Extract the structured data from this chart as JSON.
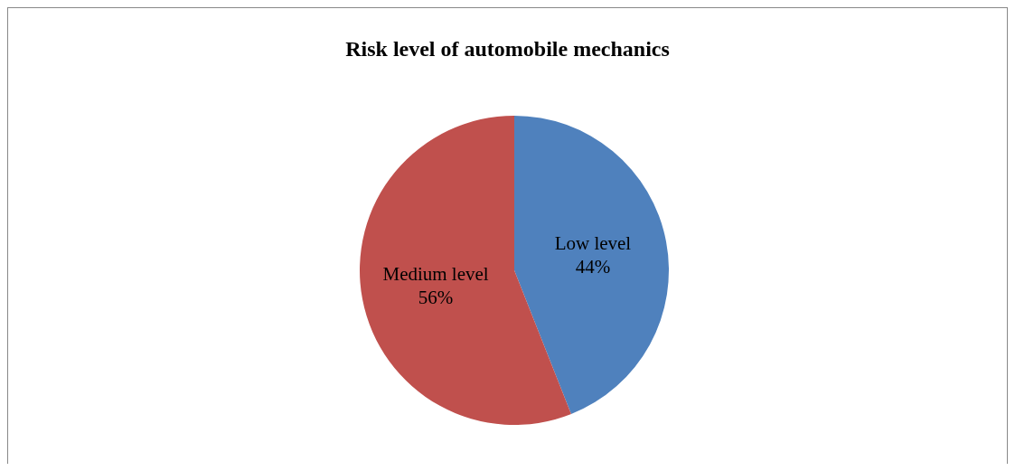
{
  "chart_data": {
    "type": "pie",
    "title": "Risk level of automobile mechanics",
    "categories": [
      "Low level",
      "Medium level"
    ],
    "values": [
      44,
      56
    ],
    "colors": [
      "#4f81bd",
      "#c0504d"
    ],
    "value_labels": [
      "44%",
      "56%"
    ],
    "legend": false
  }
}
